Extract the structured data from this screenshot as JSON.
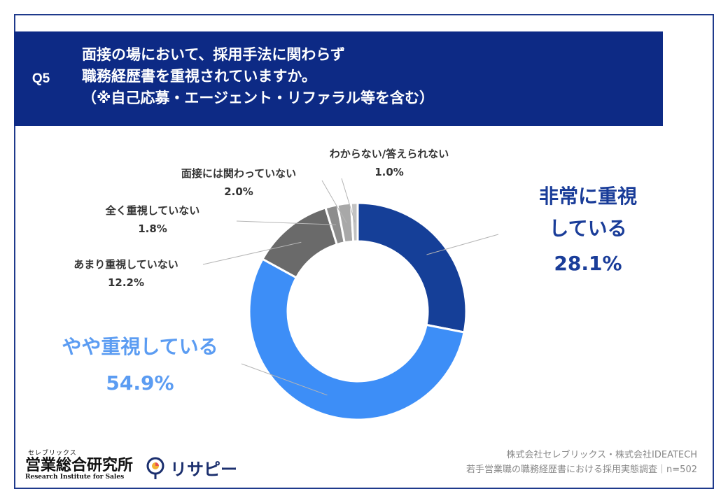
{
  "header": {
    "question_no": "Q5",
    "title_lines": [
      "面接の場において、採用手法に関わらず",
      "職務経歴書を重視されていますか。",
      "（※自己応募・エージェント・リファラル等を含む）"
    ]
  },
  "chart_data": {
    "type": "pie",
    "donut": true,
    "categories": [
      "非常に重視している",
      "やや重視している",
      "あまり重視していない",
      "全く重視していない",
      "面接には関わっていない",
      "わからない/答えられない"
    ],
    "values": [
      28.1,
      54.9,
      12.2,
      1.8,
      2.0,
      1.0
    ],
    "value_labels": [
      "28.1%",
      "54.9%",
      "12.2%",
      "1.8%",
      "2.0%",
      "1.0%"
    ],
    "label_lines": [
      [
        "非常に重視",
        "している"
      ],
      [
        "やや重視している"
      ],
      [
        "あまり重視していない"
      ],
      [
        "全く重視していない"
      ],
      [
        "面接には関わっていない"
      ],
      [
        "わからない/答えられない"
      ]
    ],
    "colors": [
      "#153f98",
      "#3d8ef7",
      "#6a6a6a",
      "#8d8d8d",
      "#a8a8a8",
      "#c2c2c2"
    ]
  },
  "footer": {
    "logo_small": "セレブリックス",
    "logo_main": "営業総合研究所",
    "logo_en": "Research Institute for Sales",
    "brand2": "リサピー",
    "credit_line1": "株式会社セレブリックス・株式会社IDEATECH",
    "credit_line2": "若手営業職の職務経歴書における採用実態調査｜n=502"
  }
}
